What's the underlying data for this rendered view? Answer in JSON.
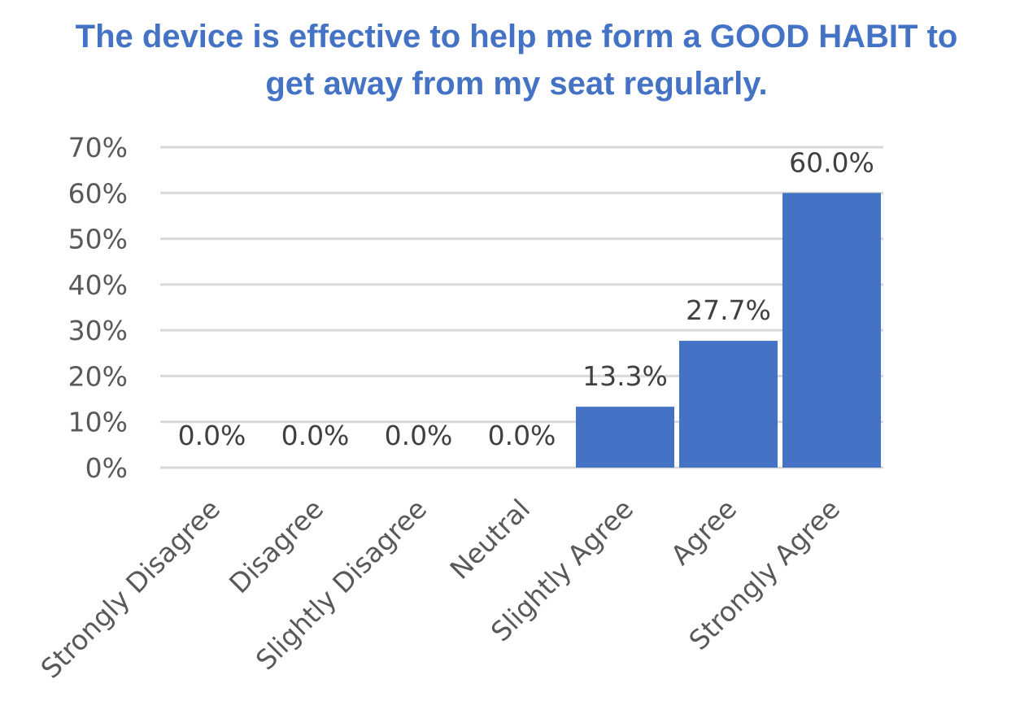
{
  "chart_data": {
    "type": "bar",
    "title_lines": [
      "The device is effective to help me form a GOOD HABIT to",
      "get away from my seat regularly."
    ],
    "categories": [
      "Strongly Disagree",
      "Disagree",
      "Slightly Disagree",
      "Neutral",
      "Slightly Agree",
      "Agree",
      "Strongly Agree"
    ],
    "values": [
      0.0,
      0.0,
      0.0,
      0.0,
      13.3,
      27.7,
      60.0
    ],
    "data_labels": [
      "0.0%",
      "0.0%",
      "0.0%",
      "0.0%",
      "13.3%",
      "27.7%",
      "60.0%"
    ],
    "yticks": [
      0,
      10,
      20,
      30,
      40,
      50,
      60,
      70
    ],
    "ytick_labels": [
      "0%",
      "10%",
      "20%",
      "30%",
      "40%",
      "50%",
      "60%",
      "70%"
    ],
    "ylim": [
      0,
      70
    ],
    "xlabel": "",
    "ylabel": "",
    "grid": true,
    "legend": "none",
    "bar_color": "#4472c4",
    "grid_color": "#d9d9d9",
    "title_color": "#4472c4"
  }
}
